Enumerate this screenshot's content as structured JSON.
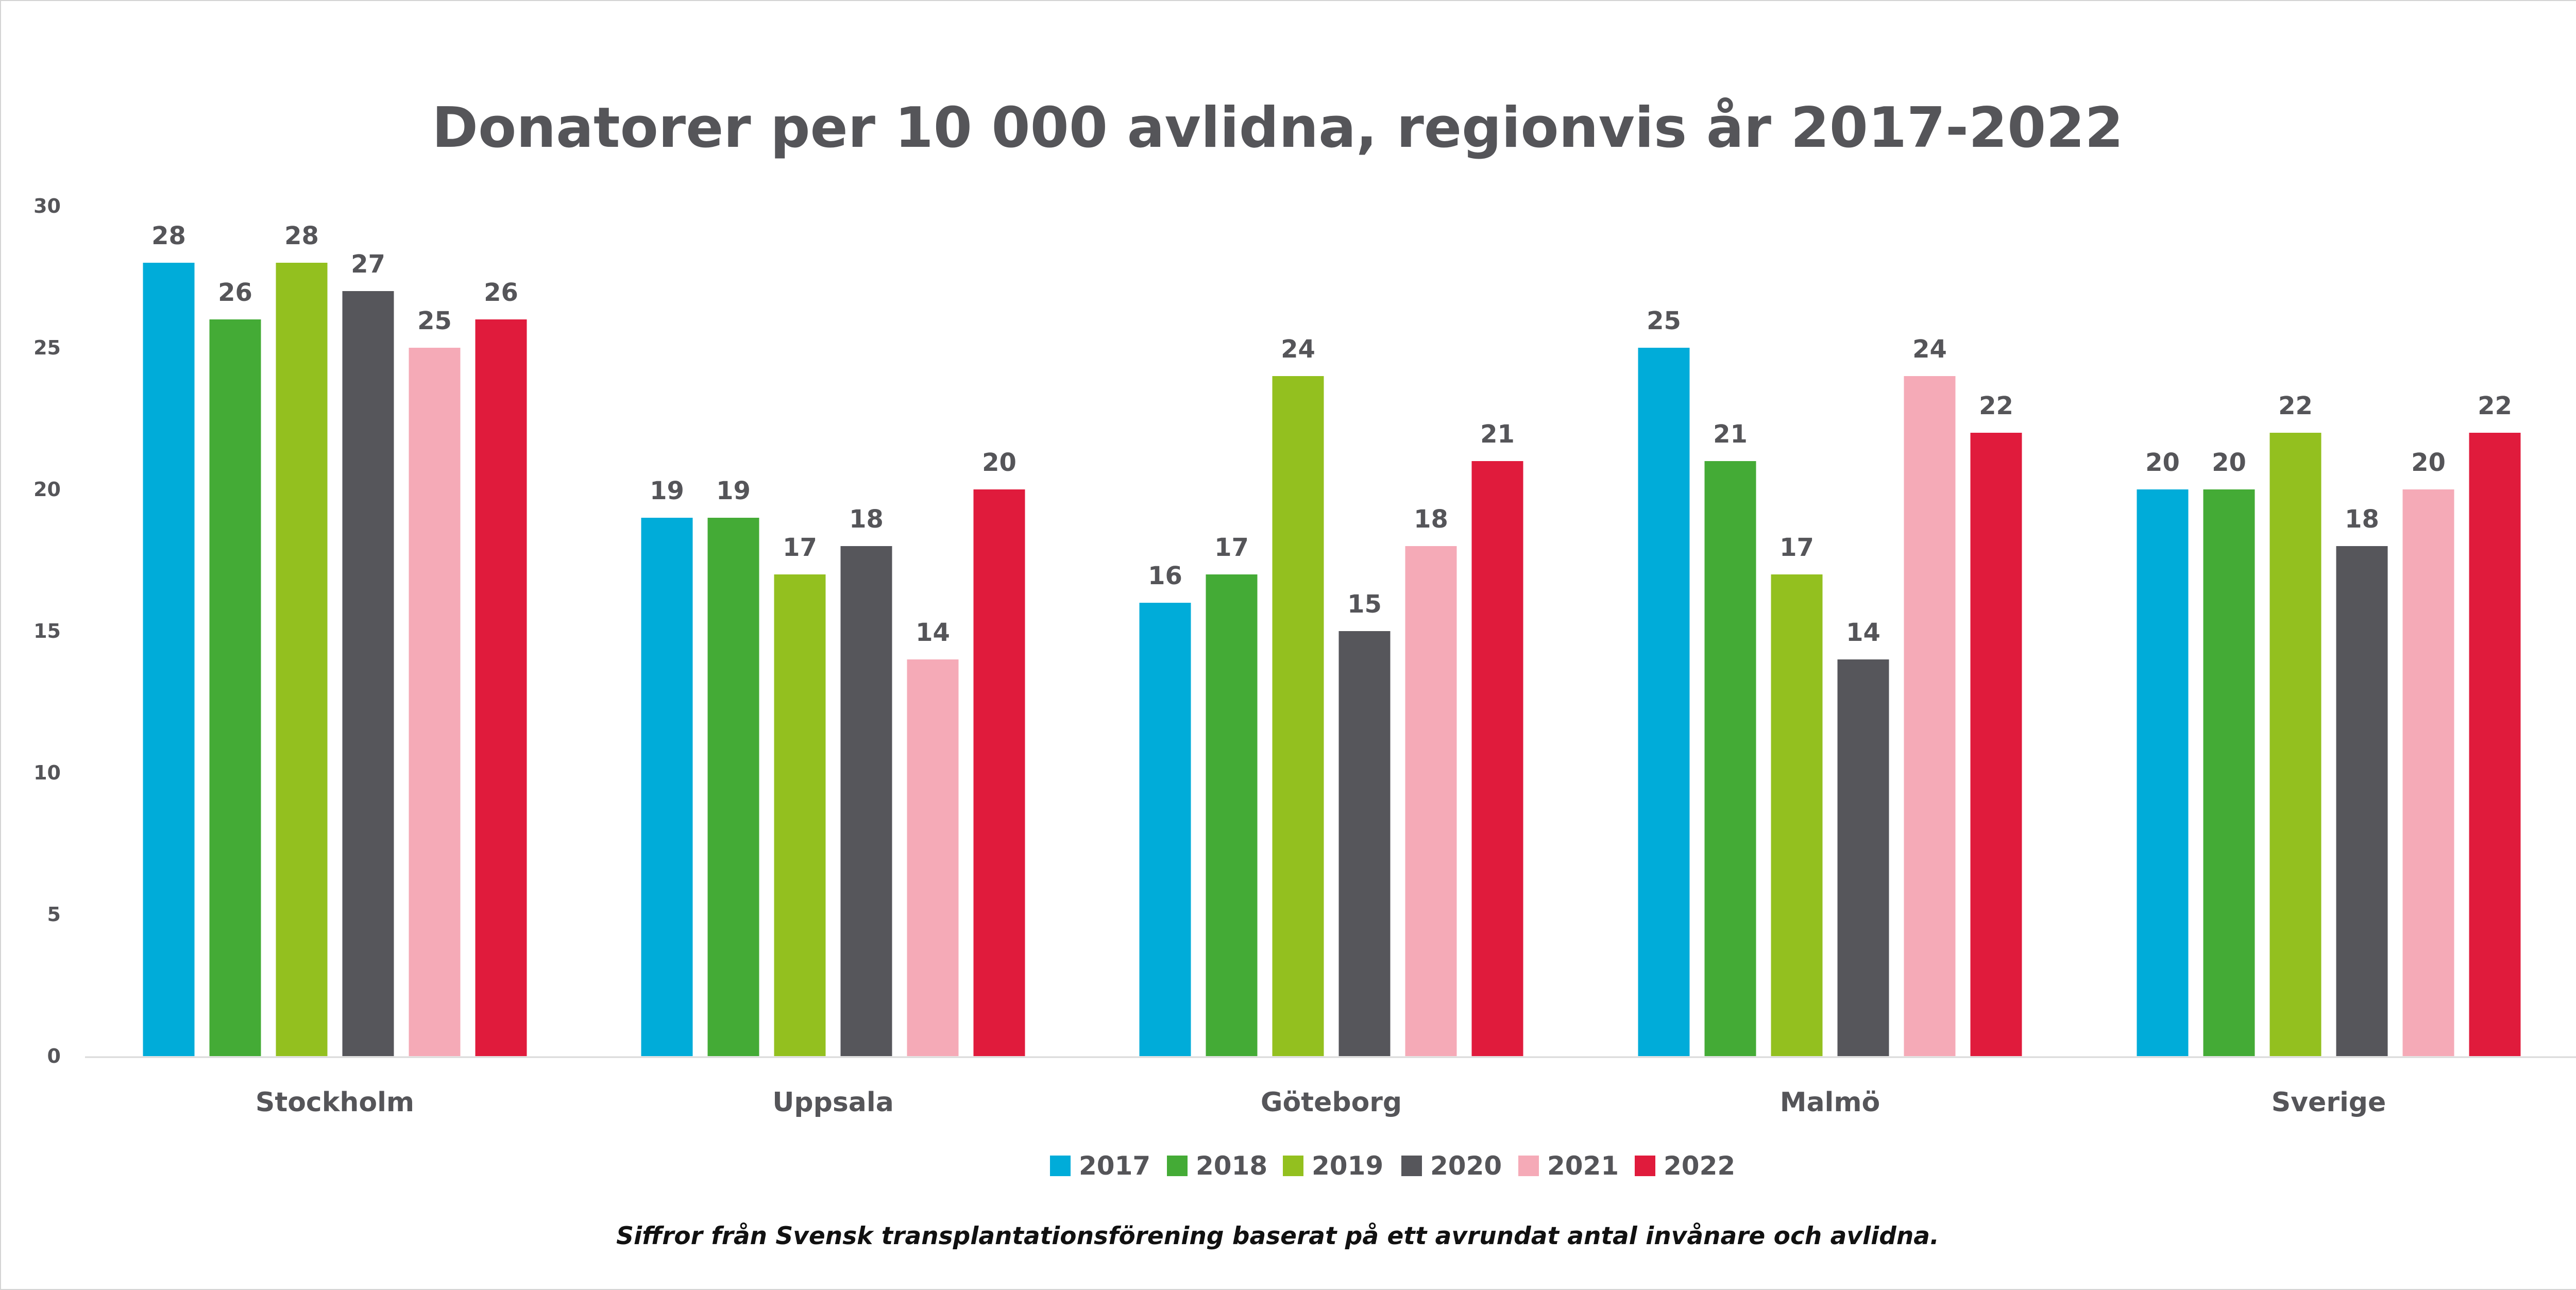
{
  "chart_data": {
    "type": "bar",
    "title": "Donatorer per 10 000 avlidna, regionvis år 2017-2022",
    "footnote": "Siffror från Svensk transplantationsförening baserat på ett avrundat antal invånare och avlidna.",
    "categories": [
      "Stockholm",
      "Uppsala",
      "Göteborg",
      "Malmö",
      "Sverige"
    ],
    "series": [
      {
        "name": "2017",
        "color": "#00acd9",
        "values": [
          28,
          19,
          16,
          25,
          20
        ]
      },
      {
        "name": "2018",
        "color": "#44ab36",
        "values": [
          26,
          19,
          17,
          21,
          20
        ]
      },
      {
        "name": "2019",
        "color": "#93c01f",
        "values": [
          28,
          17,
          24,
          17,
          22
        ]
      },
      {
        "name": "2020",
        "color": "#56565b",
        "values": [
          27,
          18,
          15,
          14,
          18
        ]
      },
      {
        "name": "2021",
        "color": "#f5aab7",
        "values": [
          25,
          14,
          18,
          24,
          20
        ]
      },
      {
        "name": "2022",
        "color": "#e01b3c",
        "values": [
          26,
          20,
          21,
          22,
          22
        ]
      }
    ],
    "yticks": [
      "0",
      "5",
      "10",
      "15",
      "20",
      "25",
      "30"
    ],
    "ylim": [
      0,
      30
    ],
    "grid": false,
    "legend": "bottom-center"
  }
}
